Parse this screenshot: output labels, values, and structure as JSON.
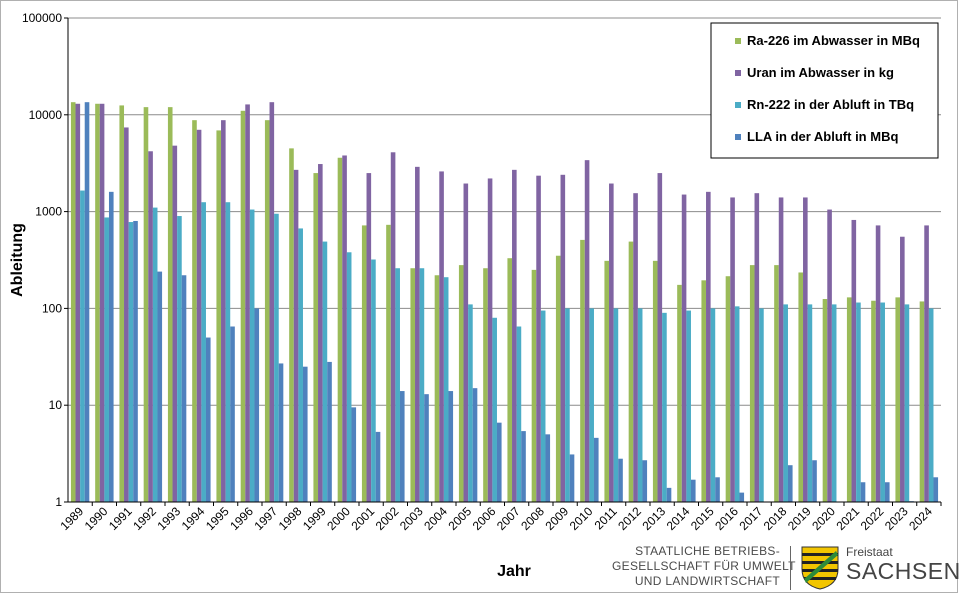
{
  "chart_data": {
    "type": "bar",
    "title": "",
    "xlabel": "Jahr",
    "ylabel": "Ableitung",
    "yscale": "log",
    "ylim": [
      1,
      100000
    ],
    "yticks": [
      "1",
      "10",
      "100",
      "1000",
      "10000",
      "100000"
    ],
    "grid": "horizontal",
    "legend_position": "top-right",
    "categories": [
      "1989",
      "1990",
      "1991",
      "1992",
      "1993",
      "1994",
      "1995",
      "1996",
      "1997",
      "1998",
      "1999",
      "2000",
      "2001",
      "2002",
      "2003",
      "2004",
      "2005",
      "2006",
      "2007",
      "2008",
      "2009",
      "2010",
      "2011",
      "2012",
      "2013",
      "2014",
      "2015",
      "2016",
      "2017",
      "2018",
      "2019",
      "2020",
      "2021",
      "2022",
      "2023",
      "2024"
    ],
    "series": [
      {
        "name": "Ra-226 im Abwasser in MBq",
        "color": "#9bbb59",
        "values": [
          13500,
          13000,
          12500,
          12000,
          12000,
          8800,
          6900,
          11000,
          8800,
          4500,
          2500,
          3600,
          720,
          730,
          260,
          220,
          280,
          260,
          330,
          250,
          350,
          510,
          310,
          490,
          310,
          175,
          195,
          215,
          280,
          280,
          235,
          125,
          130,
          120,
          130,
          118
        ]
      },
      {
        "name": "Uran im Abwasser in kg",
        "color": "#8064a2",
        "values": [
          13000,
          13000,
          7400,
          4200,
          4800,
          7000,
          8800,
          12800,
          13500,
          2700,
          3100,
          3800,
          2500,
          4100,
          2900,
          2600,
          1950,
          2200,
          2700,
          2350,
          2400,
          3400,
          1950,
          1550,
          2500,
          1500,
          1600,
          1400,
          1550,
          1400,
          1400,
          1050,
          820,
          720,
          550,
          720
        ]
      },
      {
        "name": "Rn-222 in der Abluft in TBq",
        "color": "#4bacc6",
        "values": [
          1650,
          870,
          780,
          1100,
          900,
          1250,
          1250,
          1050,
          950,
          670,
          490,
          380,
          320,
          260,
          260,
          210,
          110,
          80,
          65,
          95,
          100,
          100,
          100,
          100,
          90,
          95,
          100,
          105,
          100,
          110,
          110,
          110,
          115,
          115,
          110,
          100
        ]
      },
      {
        "name": "LLA in der Abluft in MBq",
        "color": "#4f81bd",
        "values": [
          13500,
          1600,
          800,
          240,
          220,
          50,
          65,
          100,
          27,
          25,
          28,
          9.5,
          5.3,
          14,
          13,
          14,
          15,
          6.6,
          5.4,
          5,
          3.1,
          4.6,
          2.8,
          2.7,
          1.4,
          1.7,
          1.8,
          1.25,
          null,
          2.4,
          2.7,
          null,
          1.6,
          1.6,
          1.02,
          1.8
        ]
      }
    ]
  },
  "logo": {
    "org_line1": "STAATLICHE BETRIEBS-",
    "org_line2": "GESELLSCHAFT FÜR UMWELT",
    "org_line3": "UND LANDWIRTSCHAFT",
    "state_small": "Freistaat",
    "state_big": "SACHSEN"
  }
}
